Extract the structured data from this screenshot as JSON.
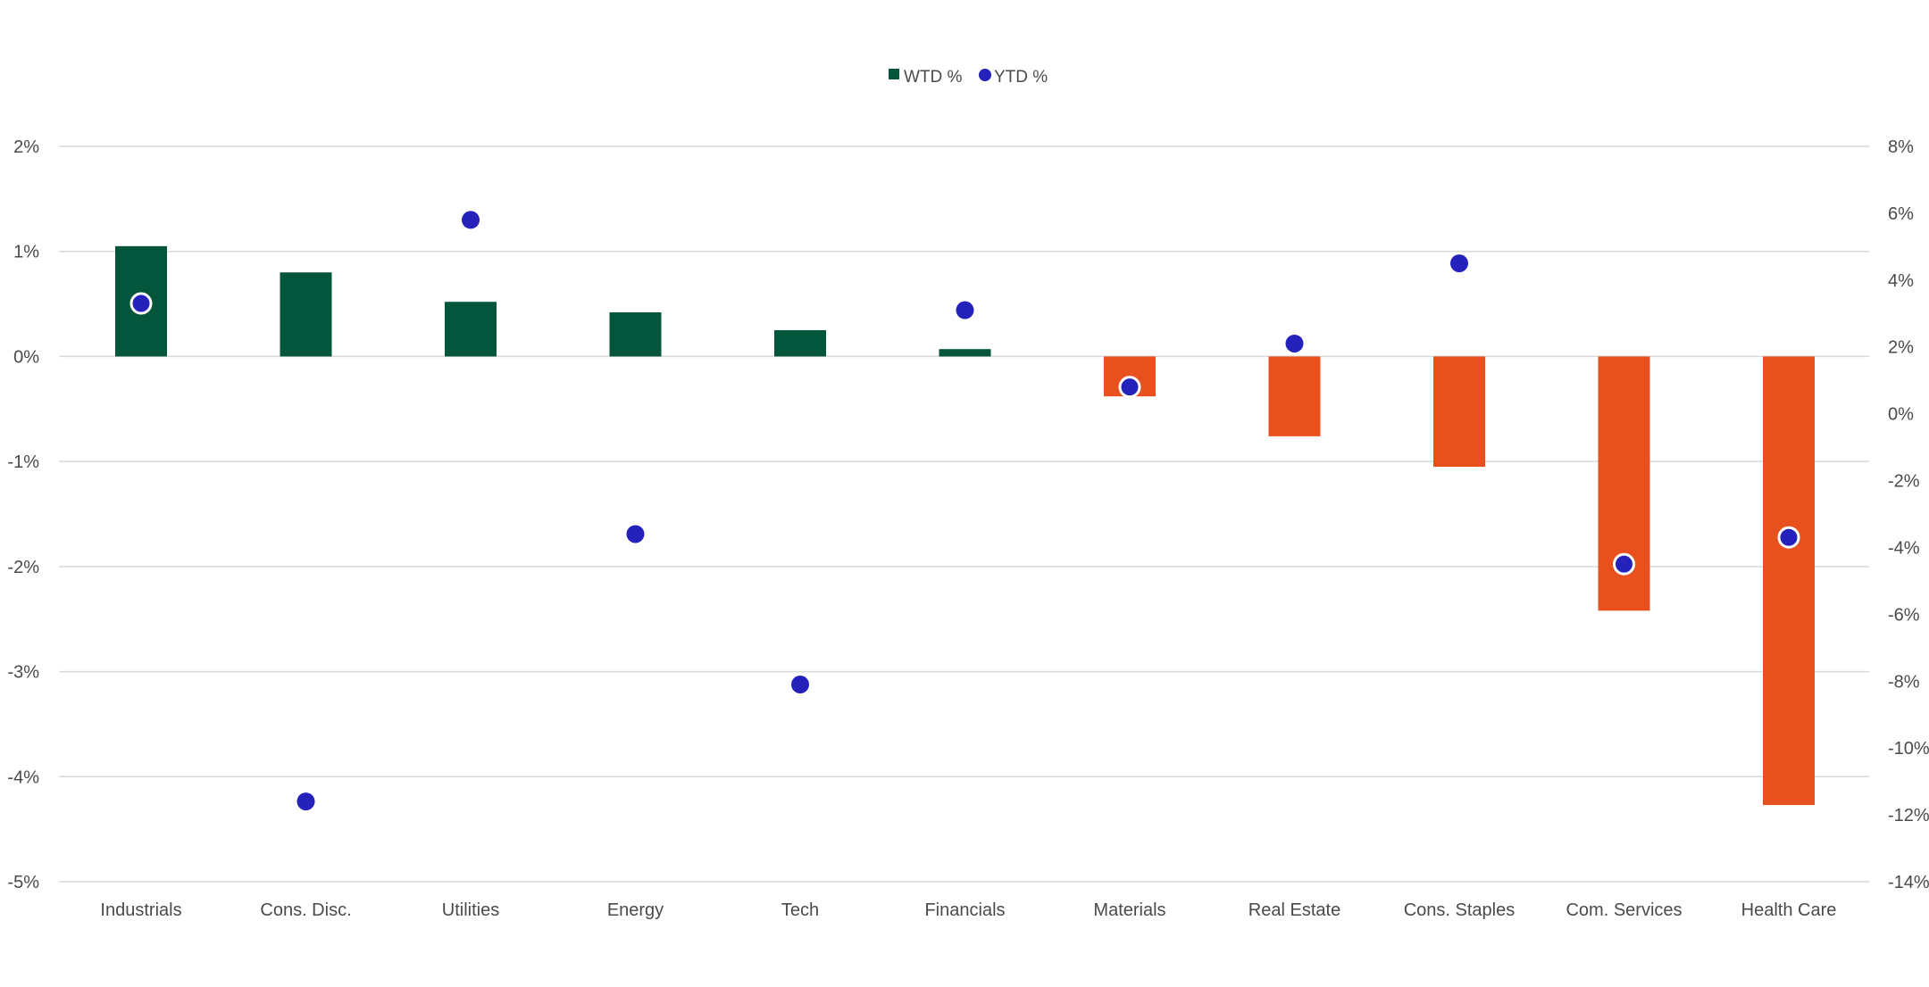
{
  "chart_data": {
    "type": "bar",
    "categories": [
      "Industrials",
      "Cons. Disc.",
      "Utilities",
      "Energy",
      "Tech",
      "Financials",
      "Materials",
      "Real Estate",
      "Cons. Staples",
      "Com. Services",
      "Health Care"
    ],
    "series": [
      {
        "name": "WTD %",
        "type": "bar",
        "axis": "left",
        "values": [
          1.05,
          0.8,
          0.52,
          0.42,
          0.25,
          0.07,
          -0.38,
          -0.76,
          -1.05,
          -2.42,
          -4.27
        ]
      },
      {
        "name": "YTD %",
        "type": "scatter",
        "axis": "right",
        "values": [
          3.3,
          -11.6,
          5.8,
          -3.6,
          -8.1,
          3.1,
          0.8,
          2.1,
          4.5,
          -4.5,
          -3.7
        ]
      }
    ],
    "y_left": {
      "ylim": [
        -5,
        2
      ],
      "ticks": [
        "2%",
        "1%",
        "0%",
        "-1%",
        "-2%",
        "-3%",
        "-4%",
        "-5%"
      ]
    },
    "y_right": {
      "ylim": [
        -14,
        8
      ],
      "ticks": [
        "8%",
        "6%",
        "4%",
        "2%",
        "0%",
        "-2%",
        "-4%",
        "-6%",
        "-8%",
        "-10%",
        "-12%",
        "-14%"
      ]
    },
    "legend_position": "top-center",
    "grid": true,
    "colors": {
      "positive_bar": "#03563b",
      "negative_bar": "#e8501e",
      "dot": "#2521bb",
      "dot_outline": "#ffffff",
      "legend_wtd": "#03563b"
    }
  }
}
